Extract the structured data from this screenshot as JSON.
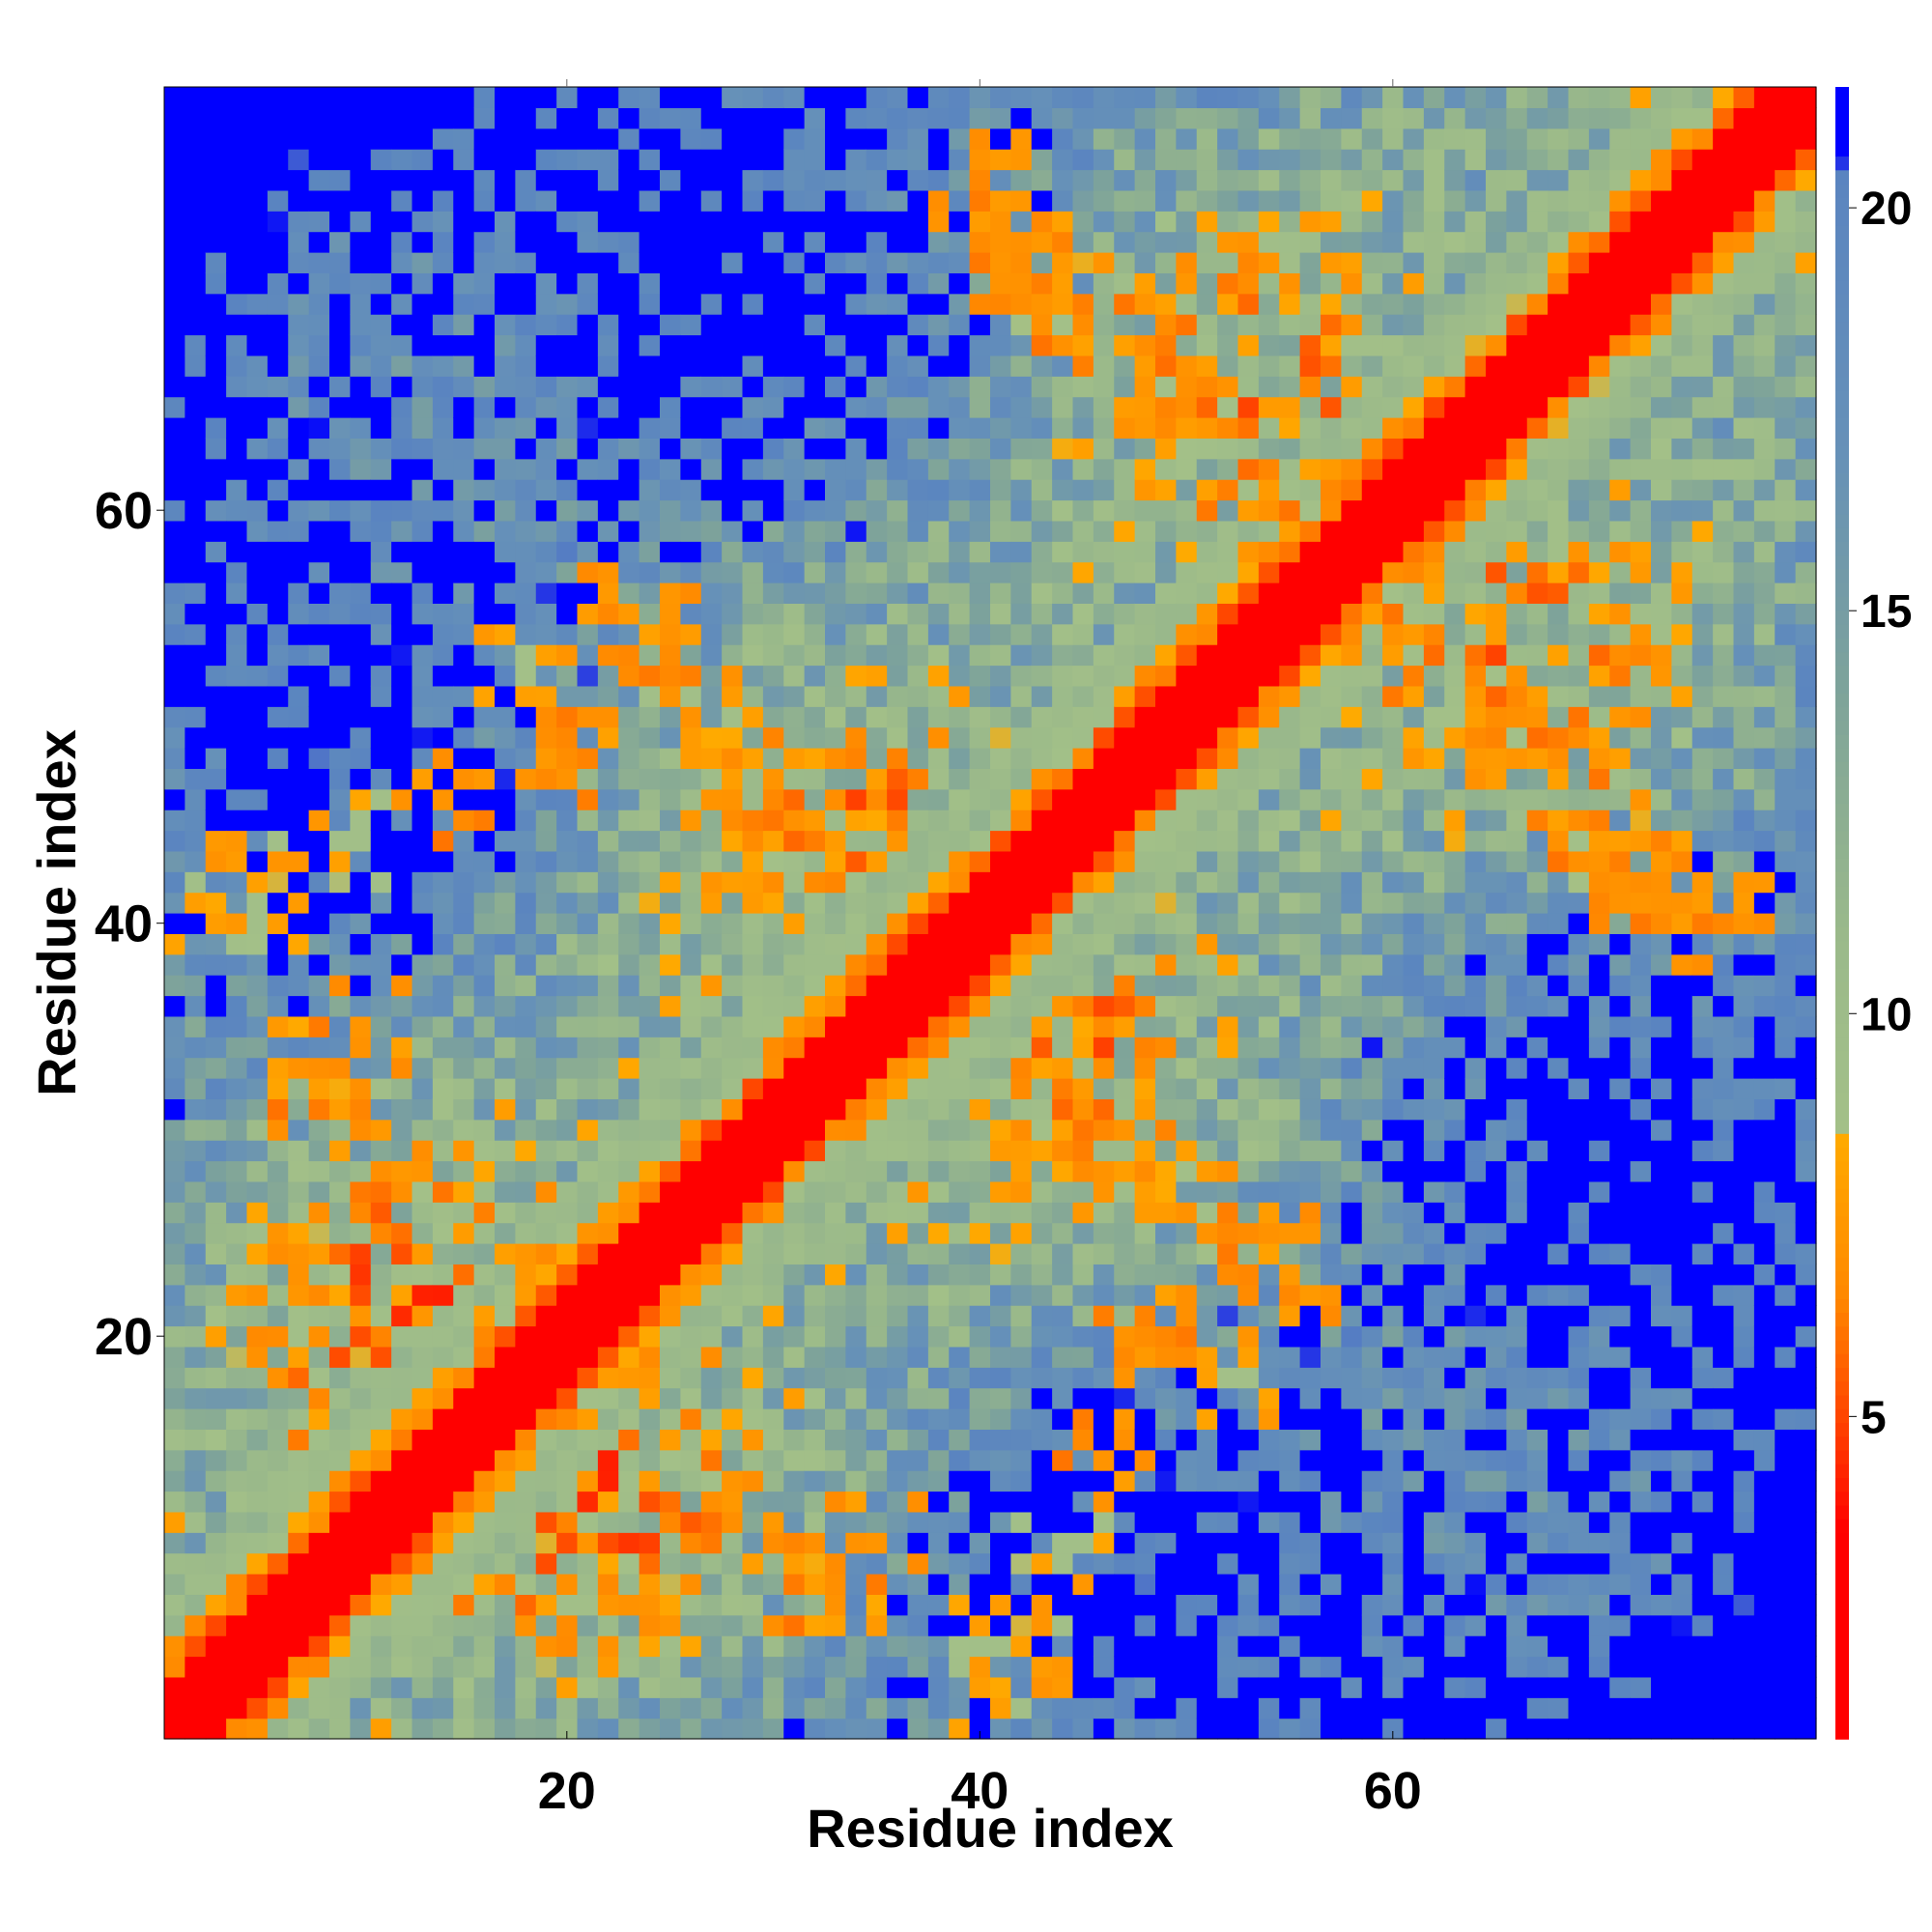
{
  "chart_data": {
    "type": "heatmap",
    "title": "",
    "xlabel": "Residue index",
    "ylabel": "Residue index",
    "n_residues": 80,
    "xlim": [
      1,
      80
    ],
    "ylim": [
      1,
      80
    ],
    "x_ticks": [
      20,
      40,
      60
    ],
    "y_ticks": [
      20,
      40,
      60
    ],
    "colorbar": {
      "ticks": [
        5,
        10,
        15,
        20
      ],
      "range": [
        1,
        21.5
      ],
      "colormap": "contact-distance",
      "stops": [
        {
          "value": 1.0,
          "color": "#ff0000"
        },
        {
          "value": 3.6,
          "color": "#ff0000"
        },
        {
          "value": 4.6,
          "color": "#ff3300"
        },
        {
          "value": 6.5,
          "color": "#ff8800"
        },
        {
          "value": 8.5,
          "color": "#ffaa00"
        },
        {
          "value": 8.6,
          "color": "#a3c088"
        },
        {
          "value": 11.0,
          "color": "#9ab98a"
        },
        {
          "value": 14.0,
          "color": "#7ea39a"
        },
        {
          "value": 17.0,
          "color": "#6691b8"
        },
        {
          "value": 20.5,
          "color": "#5a84c0"
        },
        {
          "value": 20.6,
          "color": "#0000ff"
        },
        {
          "value": 21.5,
          "color": "#0000ff"
        }
      ]
    },
    "values_description": "Symmetric residue-residue distance map (Angstrom) of an 80-residue chain; near-diagonal red band, orange contact patches off-diagonal, blue regions beyond 20",
    "contact_patches": [
      {
        "i": 40,
        "j": 75,
        "value": 6
      },
      {
        "i": 42,
        "j": 72,
        "value": 6
      },
      {
        "i": 44,
        "j": 70,
        "value": 7
      },
      {
        "i": 47,
        "j": 68,
        "value": 6
      },
      {
        "i": 50,
        "j": 66,
        "value": 6
      },
      {
        "i": 52,
        "j": 64,
        "value": 7
      },
      {
        "i": 55,
        "j": 60,
        "value": 6
      },
      {
        "i": 8,
        "j": 32,
        "value": 6
      },
      {
        "i": 12,
        "j": 28,
        "value": 6
      },
      {
        "i": 15,
        "j": 25,
        "value": 7
      },
      {
        "i": 18,
        "j": 22,
        "value": 6
      },
      {
        "i": 24,
        "j": 54,
        "value": 6
      },
      {
        "i": 26,
        "j": 50,
        "value": 7
      },
      {
        "i": 28,
        "j": 46,
        "value": 6
      },
      {
        "i": 30,
        "j": 44,
        "value": 6
      },
      {
        "i": 3,
        "j": 41,
        "value": 7
      },
      {
        "i": 5,
        "j": 41,
        "value": 7
      },
      {
        "i": 66,
        "j": 50,
        "value": 6
      },
      {
        "i": 70,
        "j": 45,
        "value": 6
      },
      {
        "i": 72,
        "j": 42,
        "value": 6
      },
      {
        "i": 76,
        "j": 40,
        "value": 6
      },
      {
        "i": 44,
        "j": 10,
        "value": 7
      },
      {
        "i": 46,
        "j": 14,
        "value": 6
      },
      {
        "i": 48,
        "j": 20,
        "value": 6
      },
      {
        "i": 52,
        "j": 18,
        "value": 7
      },
      {
        "i": 55,
        "j": 22,
        "value": 6
      },
      {
        "i": 42,
        "j": 5,
        "value": 7
      },
      {
        "i": 35,
        "j": 10,
        "value": 6
      },
      {
        "i": 33,
        "j": 8,
        "value": 7
      }
    ]
  }
}
